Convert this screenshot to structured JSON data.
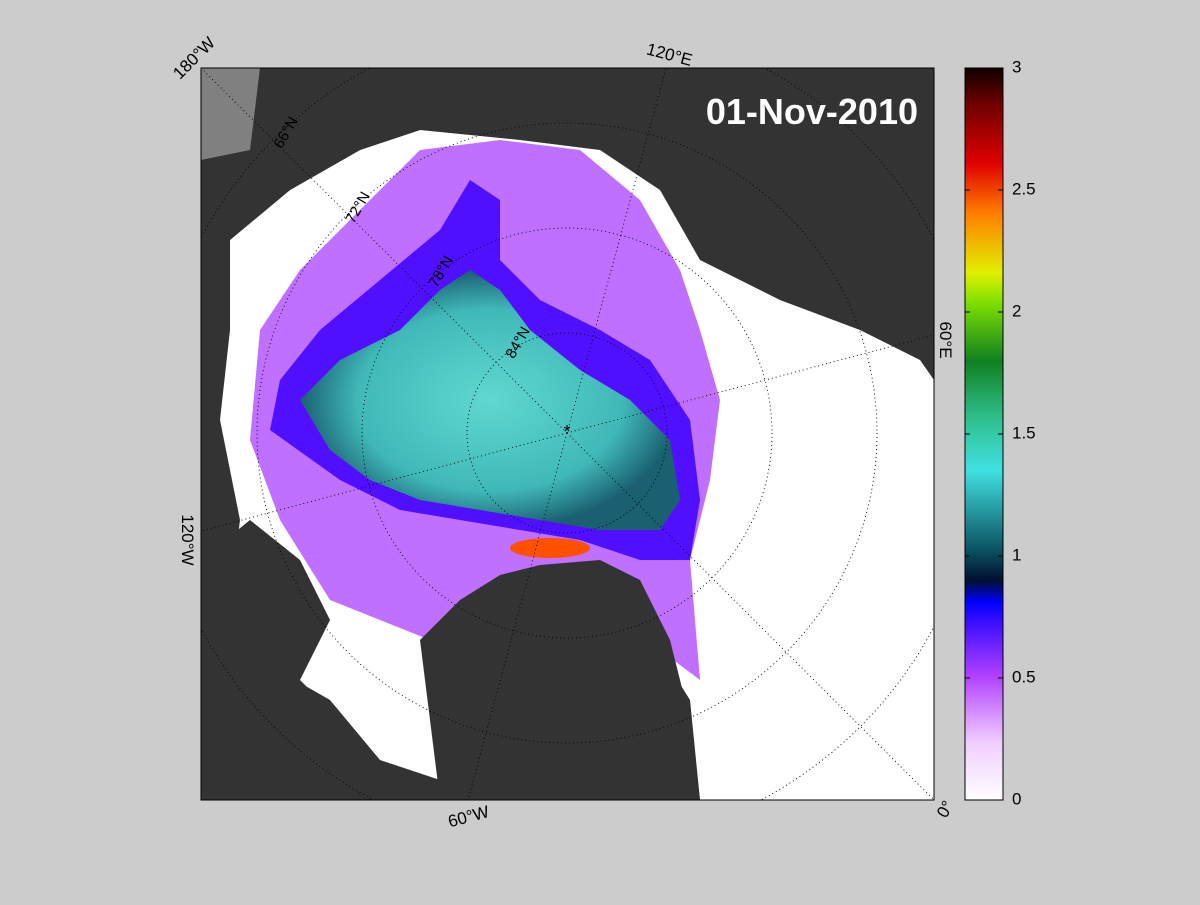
{
  "map": {
    "date": "01-Nov-2010",
    "longitude_labels": [
      "180°W",
      "120°E",
      "60°E",
      "0°",
      "60°W",
      "120°W"
    ],
    "latitude_labels": [
      "66°N",
      "72°N",
      "78°N",
      "84°N"
    ],
    "colorbar": {
      "range": [
        0,
        3
      ],
      "ticks": [
        0,
        0.5,
        1,
        1.5,
        2,
        2.5,
        3
      ]
    }
  }
}
